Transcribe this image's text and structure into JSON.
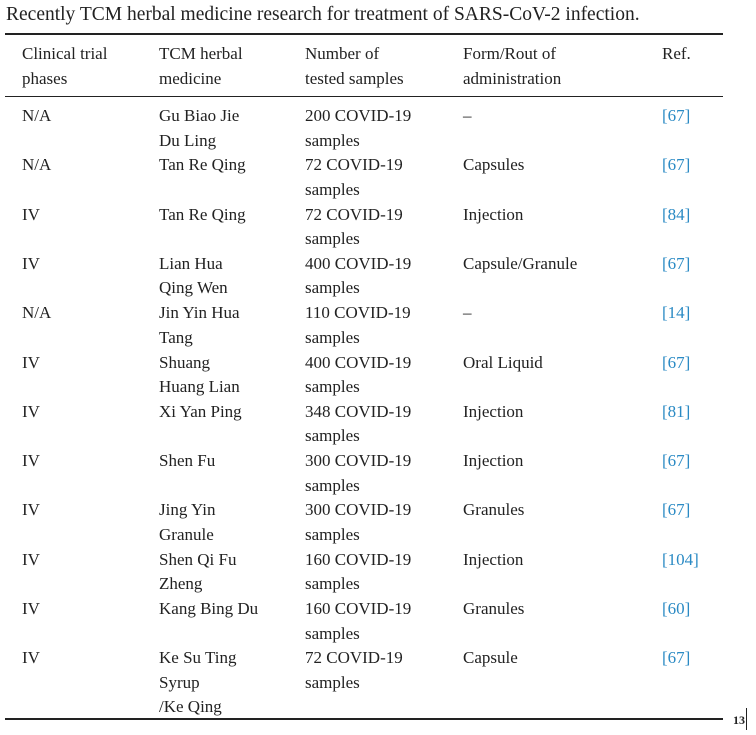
{
  "caption": "Recently TCM herbal medicine research for treatment of SARS-CoV-2 infection.",
  "table": {
    "header": [
      [
        "Clinical trial",
        "phases"
      ],
      [
        "TCM herbal",
        "medicine"
      ],
      [
        "Number of",
        "tested samples"
      ],
      [
        "Form/Rout of",
        "administration"
      ],
      [
        "Ref."
      ]
    ],
    "rows": [
      [
        [
          "N/A"
        ],
        [
          "Gu Biao Jie",
          "Du Ling"
        ],
        [
          "200 COVID-19",
          "samples"
        ],
        [
          "–"
        ],
        [
          "[67]"
        ]
      ],
      [
        [
          "N/A"
        ],
        [
          "Tan Re Qing"
        ],
        [
          "72 COVID-19",
          "samples"
        ],
        [
          "Capsules"
        ],
        [
          "[67]"
        ]
      ],
      [
        [
          "IV"
        ],
        [
          "Tan Re Qing"
        ],
        [
          "72 COVID-19",
          "samples"
        ],
        [
          "Injection"
        ],
        [
          "[84]"
        ]
      ],
      [
        [
          "IV"
        ],
        [
          "Lian Hua",
          "Qing Wen"
        ],
        [
          "400 COVID-19",
          "samples"
        ],
        [
          "Capsule/Granule"
        ],
        [
          "[67]"
        ]
      ],
      [
        [
          "N/A"
        ],
        [
          "Jin Yin Hua",
          "Tang"
        ],
        [
          "110 COVID-19",
          "samples"
        ],
        [
          "–"
        ],
        [
          "[14]"
        ]
      ],
      [
        [
          "IV"
        ],
        [
          "Shuang",
          "Huang Lian"
        ],
        [
          "400 COVID-19",
          "samples"
        ],
        [
          "Oral Liquid"
        ],
        [
          "[67]"
        ]
      ],
      [
        [
          "IV"
        ],
        [
          "Xi Yan Ping"
        ],
        [
          "348 COVID-19",
          "samples"
        ],
        [
          "Injection"
        ],
        [
          "[81]"
        ]
      ],
      [
        [
          "IV"
        ],
        [
          "Shen Fu"
        ],
        [
          "300 COVID-19",
          "samples"
        ],
        [
          "Injection"
        ],
        [
          "[67]"
        ]
      ],
      [
        [
          "IV"
        ],
        [
          "Jing Yin",
          "Granule"
        ],
        [
          "300 COVID-19",
          "samples"
        ],
        [
          "Granules"
        ],
        [
          "[67]"
        ]
      ],
      [
        [
          "IV"
        ],
        [
          "Shen Qi Fu",
          "Zheng"
        ],
        [
          "160 COVID-19",
          "samples"
        ],
        [
          "Injection"
        ],
        [
          "[104]"
        ]
      ],
      [
        [
          "IV"
        ],
        [
          "Kang Bing Du"
        ],
        [
          "160 COVID-19",
          "samples"
        ],
        [
          "Granules"
        ],
        [
          "[60]"
        ]
      ],
      [
        [
          "IV"
        ],
        [
          "Ke Su Ting",
          "Syrup",
          "/Ke Qing"
        ],
        [
          "72 COVID-19",
          "samples"
        ],
        [
          "Capsule"
        ],
        [
          "[67]"
        ]
      ]
    ]
  },
  "page_number": "13"
}
